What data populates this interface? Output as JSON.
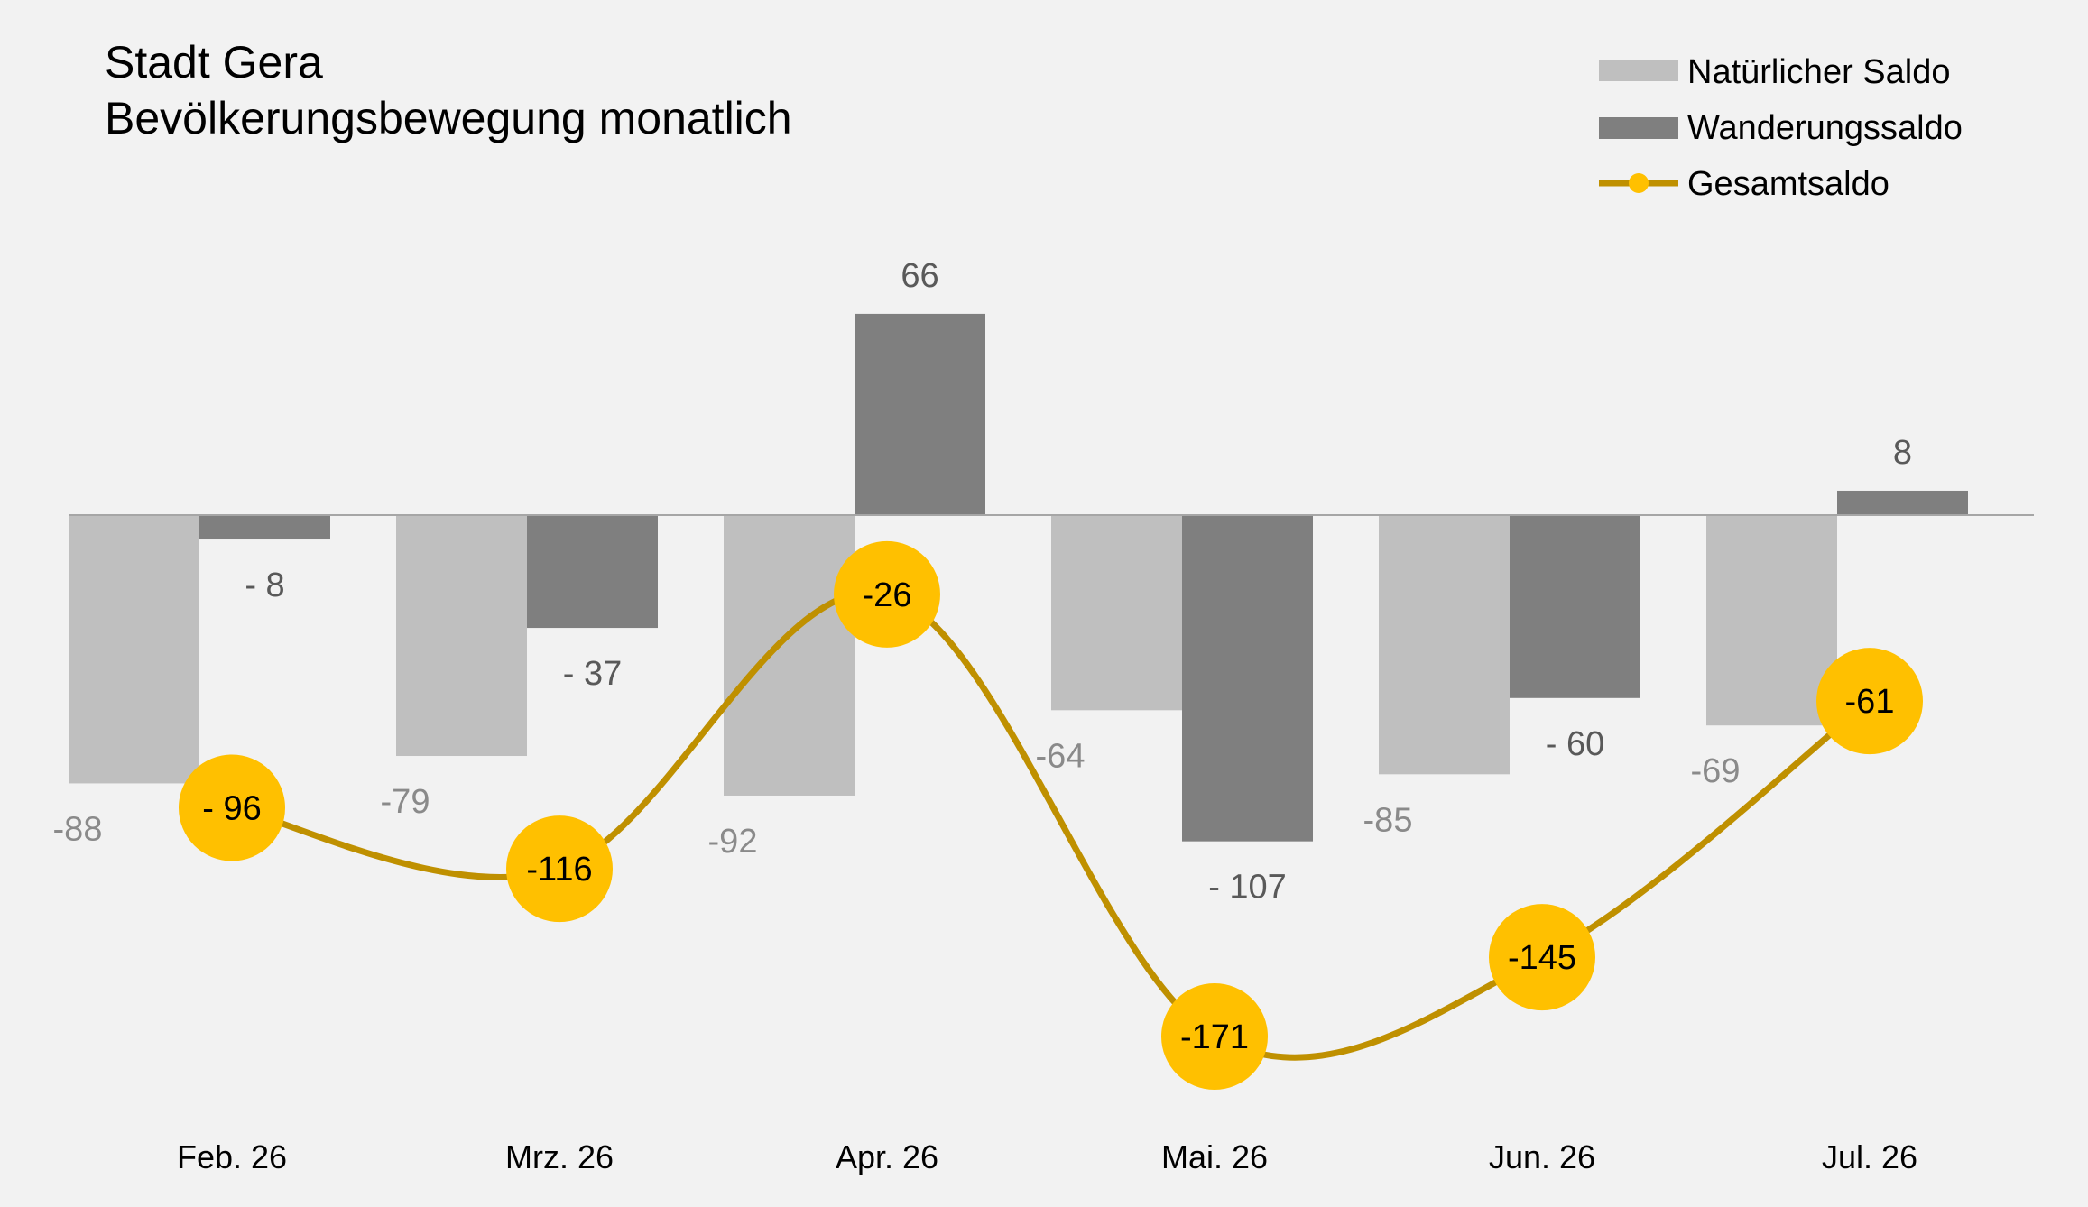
{
  "chart_data": {
    "type": "bar",
    "title": "Stadt Gera",
    "subtitle": "Bevölkerungsbewegung monatlich",
    "categories": [
      "Feb. 26",
      "Mrz. 26",
      "Apr. 26",
      "Mai. 26",
      "Jun. 26",
      "Jul. 26"
    ],
    "series": [
      {
        "name": "Natürlicher Saldo",
        "type": "bar",
        "color": "#bfbfbf",
        "values": [
          -88,
          -79,
          -92,
          -64,
          -85,
          -69
        ],
        "labels": [
          "-88",
          "-79",
          "-92",
          "-64",
          "-85",
          "-69"
        ]
      },
      {
        "name": "Wanderungssaldo",
        "type": "bar",
        "color": "#7f7f7f",
        "values": [
          -8,
          -37,
          66,
          -107,
          -60,
          8
        ],
        "labels": [
          "- 8",
          "- 37",
          "66",
          "- 107",
          "- 60",
          "8"
        ]
      },
      {
        "name": "Gesamtsaldo",
        "type": "line",
        "color": "#bf9000",
        "marker_color": "#ffc000",
        "values": [
          -96,
          -116,
          -26,
          -171,
          -145,
          -61
        ],
        "labels": [
          "- 96",
          "-116",
          "-26",
          "-171",
          "-145",
          "-61"
        ]
      }
    ],
    "ylim": [
      -200,
      100
    ],
    "grid": false,
    "legend": "top-right"
  }
}
